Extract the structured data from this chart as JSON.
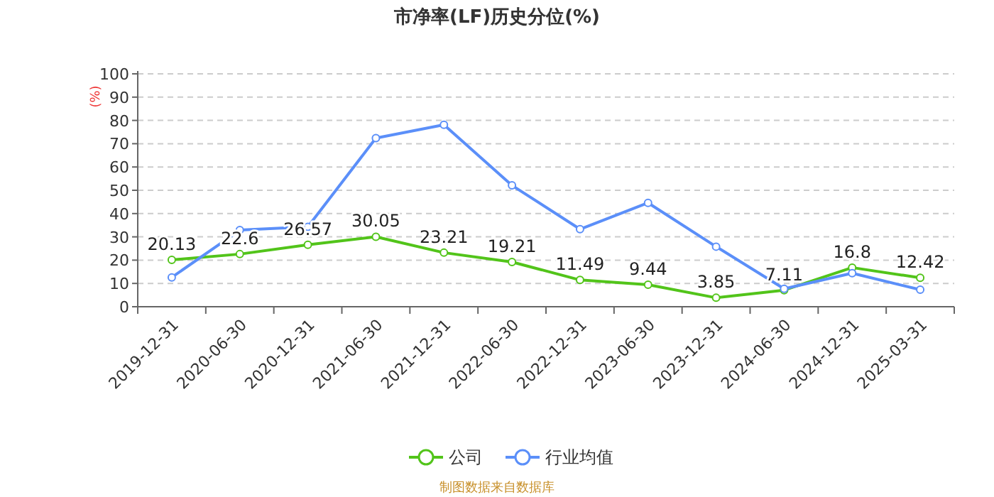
{
  "chart_data": {
    "type": "line",
    "title": "市净率(LF)历史分位(%)",
    "ylabel": "(%)",
    "categories": [
      "2019-12-31",
      "2020-06-30",
      "2020-12-31",
      "2021-06-30",
      "2021-12-31",
      "2022-06-30",
      "2022-12-31",
      "2023-06-30",
      "2023-12-31",
      "2024-06-30",
      "2024-12-31",
      "2025-03-31"
    ],
    "series": [
      {
        "name": "公司",
        "color": "#52c41a",
        "values": [
          20.13,
          22.6,
          26.57,
          30.05,
          23.21,
          19.21,
          11.49,
          9.44,
          3.85,
          7.11,
          16.8,
          12.42
        ],
        "value_labels": [
          "20.13",
          "22.6",
          "26.57",
          "30.05",
          "23.21",
          "19.21",
          "11.49",
          "9.44",
          "3.85",
          "7.11",
          "16.8",
          "12.42"
        ]
      },
      {
        "name": "行业均值",
        "color": "#5b8ff9",
        "values": [
          12.6,
          32.9,
          34.3,
          72.4,
          78.1,
          52.1,
          33.3,
          44.6,
          25.8,
          7.7,
          14.4,
          7.3
        ]
      }
    ],
    "ylim": [
      0,
      100
    ],
    "yticks": [
      0,
      10,
      20,
      30,
      40,
      50,
      60,
      70,
      80,
      90,
      100
    ],
    "grid": "y",
    "legend": "bottom",
    "marker": "circle",
    "annotations": [
      "制图数据来自数据库"
    ]
  }
}
